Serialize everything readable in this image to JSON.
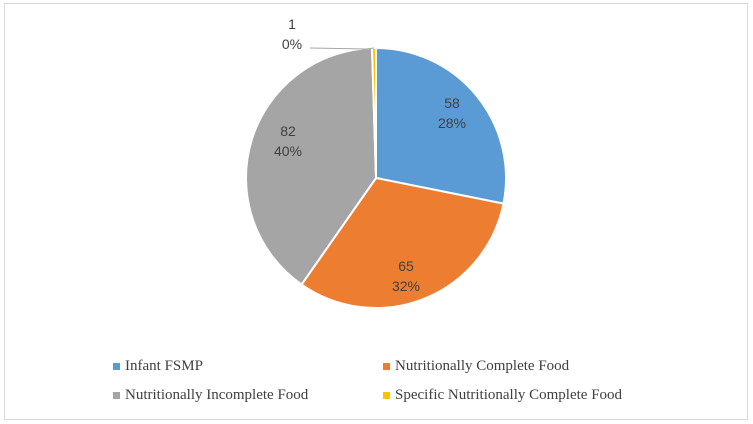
{
  "chart_data": {
    "type": "pie",
    "title": "",
    "slices": [
      {
        "name": "Infant FSMP",
        "value": 58,
        "percent": "28%",
        "color": "#5b9bd5"
      },
      {
        "name": "Nutritionally Complete Food",
        "value": 65,
        "percent": "32%",
        "color": "#ed7d31"
      },
      {
        "name": "Nutritionally Incomplete Food",
        "value": 82,
        "percent": "40%",
        "color": "#a5a5a5"
      },
      {
        "name": "Specific Nutritionally Complete Food",
        "value": 1,
        "percent": "0%",
        "color": "#ffc000"
      }
    ],
    "legend_position": "bottom",
    "data_labels": "value and percent"
  }
}
